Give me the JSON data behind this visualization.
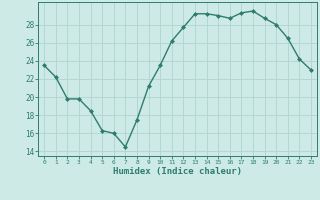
{
  "x": [
    0,
    1,
    2,
    3,
    4,
    5,
    6,
    7,
    8,
    9,
    10,
    11,
    12,
    13,
    14,
    15,
    16,
    17,
    18,
    19,
    20,
    21,
    22,
    23
  ],
  "y": [
    23.5,
    22.2,
    19.8,
    19.8,
    18.5,
    16.3,
    16.0,
    14.5,
    17.5,
    21.2,
    23.5,
    26.2,
    27.7,
    29.2,
    29.2,
    29.0,
    28.7,
    29.3,
    29.5,
    28.7,
    28.0,
    26.5,
    24.2,
    23.0
  ],
  "line_color": "#2e7d6e",
  "marker_color": "#2e7d6e",
  "bg_color": "#ceeae6",
  "grid_color": "#b0d4ce",
  "xlabel": "Humidex (Indice chaleur)",
  "xlabel_color": "#2e7d6e",
  "tick_color": "#2e7d6e",
  "spine_color": "#2e7d6e",
  "ylim": [
    13.5,
    30.5
  ],
  "xlim": [
    -0.5,
    23.5
  ],
  "yticks": [
    14,
    16,
    18,
    20,
    22,
    24,
    26,
    28
  ],
  "xticks": [
    0,
    1,
    2,
    3,
    4,
    5,
    6,
    7,
    8,
    9,
    10,
    11,
    12,
    13,
    14,
    15,
    16,
    17,
    18,
    19,
    20,
    21,
    22,
    23
  ],
  "marker_size": 2.0,
  "line_width": 1.0
}
